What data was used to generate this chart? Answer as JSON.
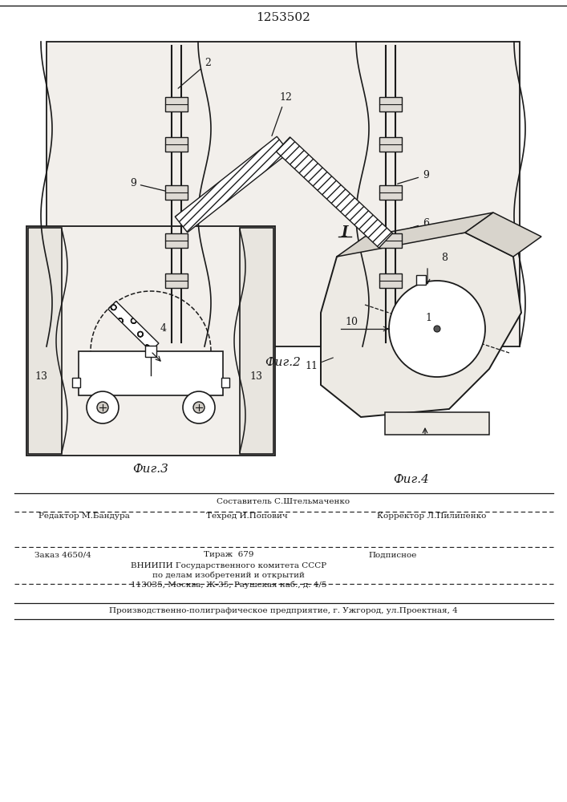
{
  "patent_number": "1253502",
  "line_color": "#1a1a1a",
  "fig2_caption": "Фиг.2",
  "fig3_caption": "Фиг.3",
  "fig4_caption": "Фиг.4",
  "footer_line0": "Составитель С.Штельмаченко",
  "footer_line1_left": "Редактор М.Бандура",
  "footer_line1_center": "Техред И.Попович",
  "footer_line1_right": "Корректор Л.Пилипенко",
  "footer_line2_left": "Заказ 4650/4",
  "footer_line2_center": "Тираж  679",
  "footer_line2_right": "Подписное",
  "footer_line3": "ВНИИПИ Государственного комитета СССР",
  "footer_line4": "по делам изобретений и открытий",
  "footer_line5": "113035, Москва, Ж-35, Раушская наб., д. 4/5",
  "footer_line6": "Производственно-полиграфическое предприятие, г. Ужгород, ул.Проектная, 4"
}
